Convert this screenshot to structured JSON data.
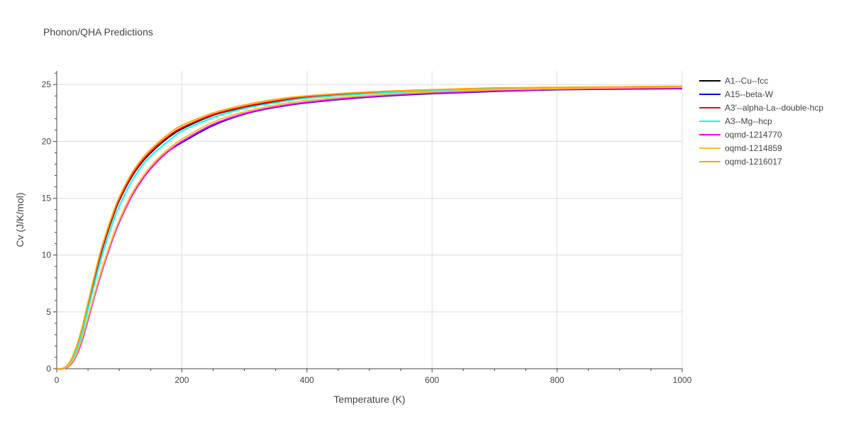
{
  "chart_data": {
    "type": "line",
    "title": "Phonon/QHA Predictions",
    "xlabel": "Temperature (K)",
    "ylabel": "Cv (J/K/mol)",
    "xlim": [
      0,
      1000
    ],
    "ylim": [
      0,
      26.2
    ],
    "x_ticks": [
      0,
      200,
      400,
      600,
      800,
      1000
    ],
    "y_ticks": [
      0,
      5,
      10,
      15,
      20,
      25
    ],
    "grid": true,
    "legend_position": "top-right",
    "x": [
      0,
      10,
      20,
      30,
      40,
      50,
      60,
      70,
      80,
      90,
      100,
      120,
      140,
      160,
      180,
      200,
      250,
      300,
      350,
      400,
      500,
      600,
      700,
      800,
      900,
      1000
    ],
    "series": [
      {
        "name": "A1--Cu--fcc",
        "color": "#000000",
        "values": [
          0,
          0.02,
          0.4,
          1.5,
          3.3,
          5.6,
          7.9,
          10.0,
          11.8,
          13.4,
          14.8,
          16.9,
          18.4,
          19.5,
          20.4,
          21.1,
          22.3,
          23.0,
          23.5,
          23.85,
          24.25,
          24.5,
          24.6,
          24.7,
          24.75,
          24.8
        ]
      },
      {
        "name": "A15--beta-W",
        "color": "#0000ff",
        "values": [
          0,
          0.01,
          0.25,
          1.0,
          2.4,
          4.3,
          6.3,
          8.2,
          9.9,
          11.5,
          12.9,
          15.2,
          16.9,
          18.2,
          19.2,
          19.9,
          21.4,
          22.4,
          23.0,
          23.4,
          23.9,
          24.2,
          24.4,
          24.55,
          24.6,
          24.65
        ]
      },
      {
        "name": "A3'--alpha-La--double-hcp",
        "color": "#ff0000",
        "values": [
          0,
          0.02,
          0.45,
          1.6,
          3.4,
          5.7,
          8.0,
          10.1,
          11.9,
          13.5,
          14.9,
          17.0,
          18.5,
          19.6,
          20.5,
          21.2,
          22.35,
          23.05,
          23.55,
          23.9,
          24.3,
          24.5,
          24.65,
          24.72,
          24.78,
          24.82
        ]
      },
      {
        "name": "A3--Mg--hcp",
        "color": "#00ffff",
        "values": [
          0,
          0.02,
          0.35,
          1.4,
          3.0,
          5.2,
          7.4,
          9.5,
          11.3,
          12.9,
          14.3,
          16.5,
          18.1,
          19.2,
          20.1,
          20.9,
          22.1,
          22.9,
          23.4,
          23.8,
          24.2,
          24.45,
          24.6,
          24.68,
          24.74,
          24.78
        ]
      },
      {
        "name": "oqmd-1214770",
        "color": "#ff00ff",
        "values": [
          0,
          0.01,
          0.25,
          1.0,
          2.4,
          4.3,
          6.3,
          8.2,
          9.9,
          11.5,
          12.9,
          15.2,
          16.9,
          18.2,
          19.2,
          20.0,
          21.5,
          22.45,
          23.05,
          23.45,
          23.95,
          24.25,
          24.45,
          24.58,
          24.65,
          24.7
        ]
      },
      {
        "name": "oqmd-1214859",
        "color": "#ffc020",
        "values": [
          0,
          0.01,
          0.3,
          1.1,
          2.6,
          4.5,
          6.5,
          8.4,
          10.1,
          11.7,
          13.1,
          15.4,
          17.1,
          18.4,
          19.4,
          20.2,
          21.7,
          22.6,
          23.2,
          23.6,
          24.05,
          24.35,
          24.55,
          24.65,
          24.72,
          24.76
        ]
      },
      {
        "name": "oqmd-1216017",
        "color": "#ffa500",
        "values": [
          0,
          0.02,
          0.5,
          1.7,
          3.5,
          5.8,
          8.1,
          10.3,
          12.1,
          13.7,
          15.1,
          17.2,
          18.7,
          19.8,
          20.7,
          21.4,
          22.5,
          23.2,
          23.7,
          24.0,
          24.35,
          24.55,
          24.7,
          24.75,
          24.8,
          24.85
        ]
      }
    ]
  }
}
